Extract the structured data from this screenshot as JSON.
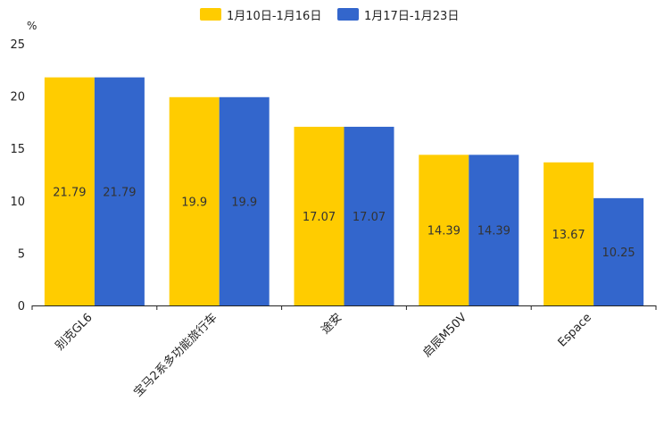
{
  "chart_data": {
    "type": "bar",
    "unit_label": "%",
    "categories": [
      "别克GL6",
      "宝马2系多功能旅行车",
      "途安",
      "启辰M50V",
      "Espace"
    ],
    "series": [
      {
        "name": "1月10日-1月16日",
        "color": "#FFCC00",
        "values": [
          21.79,
          19.9,
          17.07,
          14.39,
          13.67
        ]
      },
      {
        "name": "1月17日-1月23日",
        "color": "#3366CC",
        "values": [
          21.79,
          19.9,
          17.07,
          14.39,
          10.25
        ]
      }
    ],
    "ylim": [
      0,
      25
    ],
    "yticks": [
      0,
      5,
      10,
      15,
      20,
      25
    ],
    "legend_position": "top-center",
    "grid": false
  }
}
